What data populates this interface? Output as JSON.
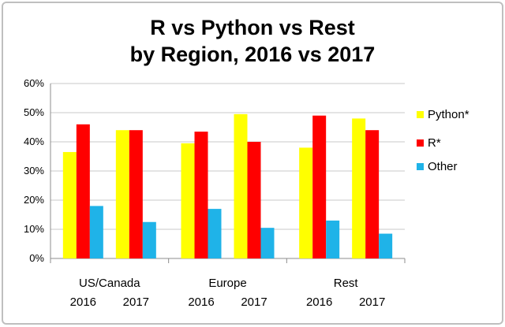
{
  "chart_data": {
    "type": "bar",
    "title": [
      "R vs Python vs Rest",
      "by Region, 2016 vs 2017"
    ],
    "groups": [
      {
        "label": "US/Canada",
        "years": [
          "2016",
          "2017"
        ]
      },
      {
        "label": "Europe",
        "years": [
          "2016",
          "2017"
        ]
      },
      {
        "label": "Rest",
        "years": [
          "2016",
          "2017"
        ]
      }
    ],
    "series": [
      {
        "name": "Python*",
        "color": "#ffff00",
        "values": [
          36.5,
          44,
          39.5,
          49.5,
          38,
          48
        ]
      },
      {
        "name": "R*",
        "color": "#ff0000",
        "values": [
          46,
          44,
          43.5,
          40,
          49,
          44
        ]
      },
      {
        "name": "Other",
        "color": "#1fb3e8",
        "values": [
          18,
          12.5,
          17,
          10.5,
          13,
          8.5
        ]
      }
    ],
    "ylim": [
      0,
      60
    ],
    "yticks": [
      "0%",
      "10%",
      "20%",
      "30%",
      "40%",
      "50%",
      "60%"
    ],
    "ytick_values": [
      0,
      10,
      20,
      30,
      40,
      50,
      60
    ],
    "grid": true,
    "legend": "right"
  }
}
